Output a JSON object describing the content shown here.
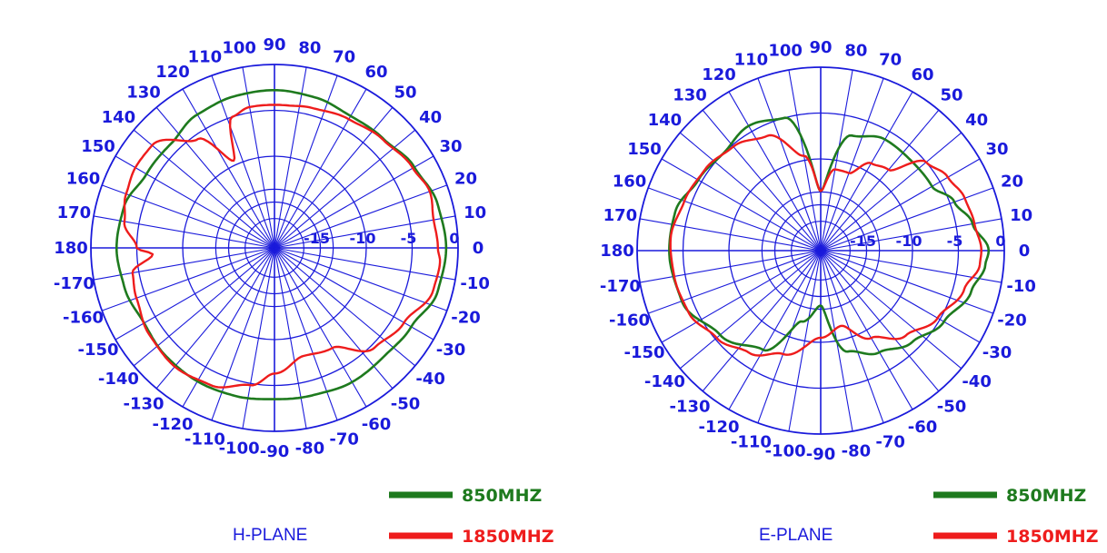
{
  "chart_data": [
    {
      "type": "polar-line",
      "title": "H-PLANE",
      "r_unit": "dB",
      "r_range": [
        -20,
        0
      ],
      "r_ticks": [
        "-15",
        "-10",
        "-5",
        "0"
      ],
      "angle_ticks": [
        "0",
        "10",
        "20",
        "30",
        "40",
        "50",
        "60",
        "70",
        "80",
        "90",
        "100",
        "110",
        "120",
        "130",
        "140",
        "150",
        "160",
        "170",
        "180",
        "-170",
        "-160",
        "-150",
        "-140",
        "-130",
        "-120",
        "-110",
        "-100",
        "-90",
        "-80",
        "-70",
        "-60",
        "-50",
        "-40",
        "-30",
        "-20",
        "-10"
      ],
      "angle_unit": "deg",
      "legend": "bottom-right",
      "series": [
        {
          "name": "850MHZ",
          "color": "#1e7a1e",
          "points": [
            [
              0,
              -1.3
            ],
            [
              15,
              -1.6
            ],
            [
              30,
              -2.4
            ],
            [
              45,
              -3.2
            ],
            [
              60,
              -3.4
            ],
            [
              75,
              -3.0
            ],
            [
              90,
              -2.8
            ],
            [
              105,
              -2.9
            ],
            [
              120,
              -3.2
            ],
            [
              135,
              -4.0
            ],
            [
              150,
              -3.9
            ],
            [
              165,
              -3.0
            ],
            [
              180,
              -2.8
            ],
            [
              195,
              -3.1
            ],
            [
              210,
              -3.6
            ],
            [
              225,
              -3.3
            ],
            [
              240,
              -3.2
            ],
            [
              255,
              -3.3
            ],
            [
              270,
              -3.5
            ],
            [
              285,
              -3.4
            ],
            [
              300,
              -3.1
            ],
            [
              315,
              -3.2
            ],
            [
              330,
              -2.8
            ],
            [
              345,
              -1.6
            ],
            [
              360,
              -1.3
            ]
          ]
        },
        {
          "name": "1850MHZ",
          "color": "#ee1c1c",
          "points": [
            [
              0,
              -2.2
            ],
            [
              10,
              -2.4
            ],
            [
              20,
              -2.0
            ],
            [
              30,
              -2.6
            ],
            [
              45,
              -3.3
            ],
            [
              60,
              -3.8
            ],
            [
              75,
              -4.2
            ],
            [
              85,
              -4.4
            ],
            [
              100,
              -4.4
            ],
            [
              108,
              -5.0
            ],
            [
              115,
              -9.5
            ],
            [
              125,
              -5.5
            ],
            [
              140,
              -2.6
            ],
            [
              150,
              -2.5
            ],
            [
              160,
              -2.8
            ],
            [
              170,
              -3.4
            ],
            [
              180,
              -5.0
            ],
            [
              183,
              -6.7
            ],
            [
              190,
              -4.3
            ],
            [
              200,
              -4.0
            ],
            [
              215,
              -3.4
            ],
            [
              230,
              -3.1
            ],
            [
              245,
              -3.5
            ],
            [
              260,
              -4.8
            ],
            [
              270,
              -6.3
            ],
            [
              285,
              -7.8
            ],
            [
              300,
              -7.4
            ],
            [
              315,
              -4.6
            ],
            [
              330,
              -3.7
            ],
            [
              345,
              -2.1
            ],
            [
              355,
              -1.9
            ],
            [
              360,
              -2.2
            ]
          ]
        }
      ]
    },
    {
      "type": "polar-line",
      "title": "E-PLANE",
      "r_unit": "dB",
      "r_range": [
        -20,
        0
      ],
      "r_ticks": [
        "-15",
        "-10",
        "-5",
        "0"
      ],
      "angle_ticks": [
        "0",
        "10",
        "20",
        "30",
        "40",
        "50",
        "60",
        "70",
        "80",
        "90",
        "100",
        "110",
        "120",
        "130",
        "140",
        "150",
        "160",
        "170",
        "180",
        "-170",
        "-160",
        "-150",
        "-140",
        "-130",
        "-120",
        "-110",
        "-100",
        "-90",
        "-80",
        "-70",
        "-60",
        "-50",
        "-40",
        "-30",
        "-20",
        "-10"
      ],
      "angle_unit": "deg",
      "legend": "bottom-right",
      "series": [
        {
          "name": "850MHZ",
          "color": "#1e7a1e",
          "points": [
            [
              0,
              -1.7
            ],
            [
              10,
              -3.2
            ],
            [
              20,
              -4.5
            ],
            [
              30,
              -6.0
            ],
            [
              45,
              -6.1
            ],
            [
              60,
              -6.0
            ],
            [
              75,
              -7.0
            ],
            [
              90,
              -13.5
            ],
            [
              105,
              -5.0
            ],
            [
              120,
              -4.3
            ],
            [
              135,
              -5.0
            ],
            [
              150,
              -4.6
            ],
            [
              165,
              -3.6
            ],
            [
              180,
              -3.5
            ],
            [
              200,
              -3.9
            ],
            [
              220,
              -5.7
            ],
            [
              240,
              -7.5
            ],
            [
              255,
              -12.0
            ],
            [
              270,
              -14.0
            ],
            [
              285,
              -8.6
            ],
            [
              300,
              -7.2
            ],
            [
              315,
              -5.9
            ],
            [
              330,
              -4.5
            ],
            [
              345,
              -3.0
            ],
            [
              355,
              -2.0
            ],
            [
              360,
              -1.7
            ]
          ]
        },
        {
          "name": "1850MHZ",
          "color": "#ee1c1c",
          "points": [
            [
              0,
              -2.5
            ],
            [
              10,
              -3.0
            ],
            [
              20,
              -3.3
            ],
            [
              30,
              -4.0
            ],
            [
              40,
              -5.0
            ],
            [
              50,
              -8.5
            ],
            [
              60,
              -9.0
            ],
            [
              70,
              -11.0
            ],
            [
              80,
              -11.0
            ],
            [
              90,
              -13.5
            ],
            [
              100,
              -9.5
            ],
            [
              115,
              -6.2
            ],
            [
              130,
              -5.2
            ],
            [
              145,
              -4.6
            ],
            [
              160,
              -4.2
            ],
            [
              175,
              -3.6
            ],
            [
              190,
              -3.8
            ],
            [
              205,
              -4.1
            ],
            [
              220,
              -5.2
            ],
            [
              235,
              -6.4
            ],
            [
              250,
              -8.0
            ],
            [
              270,
              -10.5
            ],
            [
              285,
              -11.5
            ],
            [
              300,
              -9.0
            ],
            [
              315,
              -6.9
            ],
            [
              330,
              -5.3
            ],
            [
              345,
              -3.8
            ],
            [
              355,
              -2.6
            ],
            [
              360,
              -2.5
            ]
          ]
        }
      ]
    }
  ]
}
